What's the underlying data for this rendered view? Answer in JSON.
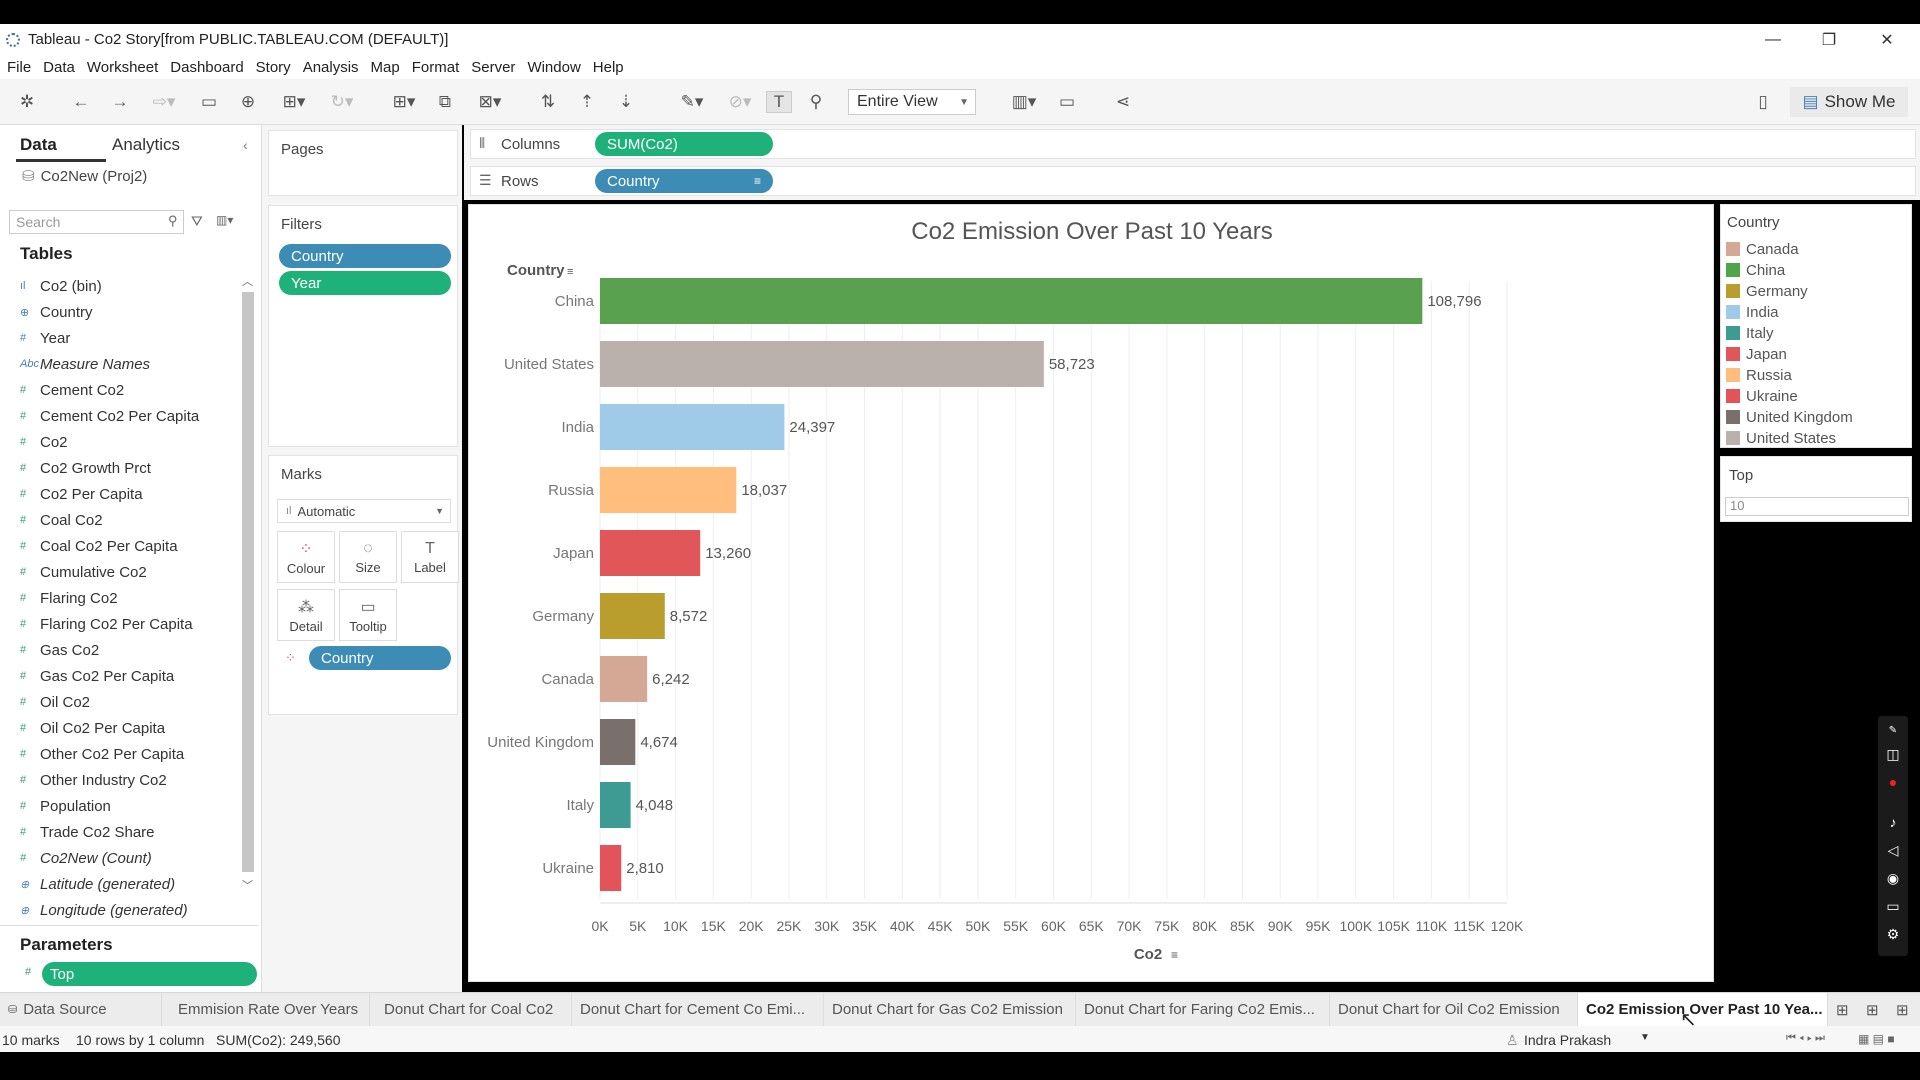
{
  "window": {
    "title": "Tableau - Co2 Story[from PUBLIC.TABLEAU.COM (DEFAULT)]"
  },
  "menu": [
    "File",
    "Data",
    "Worksheet",
    "Dashboard",
    "Story",
    "Analysis",
    "Map",
    "Format",
    "Server",
    "Window",
    "Help"
  ],
  "toolbar": {
    "fit": "Entire View",
    "show_me": "Show Me"
  },
  "left_panel": {
    "tab_data": "Data",
    "tab_analytics": "Analytics",
    "datasource": "Co2New (Proj2)",
    "search_placeholder": "Search",
    "tables_title": "Tables",
    "fields": [
      {
        "name": "Co2 (bin)",
        "type": "bin"
      },
      {
        "name": "Country",
        "type": "geo"
      },
      {
        "name": "Year",
        "type": "dim"
      },
      {
        "name": "Measure Names",
        "type": "abc",
        "italic": true
      },
      {
        "name": "Cement Co2",
        "type": "measure"
      },
      {
        "name": "Cement Co2 Per Capita",
        "type": "measure"
      },
      {
        "name": "Co2",
        "type": "measure"
      },
      {
        "name": "Co2 Growth Prct",
        "type": "measure"
      },
      {
        "name": "Co2 Per Capita",
        "type": "measure"
      },
      {
        "name": "Coal Co2",
        "type": "measure"
      },
      {
        "name": "Coal Co2 Per Capita",
        "type": "measure"
      },
      {
        "name": "Cumulative Co2",
        "type": "measure"
      },
      {
        "name": "Flaring Co2",
        "type": "measure"
      },
      {
        "name": "Flaring Co2 Per Capita",
        "type": "measure"
      },
      {
        "name": "Gas Co2",
        "type": "measure"
      },
      {
        "name": "Gas Co2 Per Capita",
        "type": "measure"
      },
      {
        "name": "Oil Co2",
        "type": "measure"
      },
      {
        "name": "Oil Co2 Per Capita",
        "type": "measure"
      },
      {
        "name": "Other Co2 Per Capita",
        "type": "measure"
      },
      {
        "name": "Other Industry Co2",
        "type": "measure"
      },
      {
        "name": "Population",
        "type": "measure"
      },
      {
        "name": "Trade Co2 Share",
        "type": "measure"
      },
      {
        "name": "Co2New (Count)",
        "type": "measure",
        "italic": true
      },
      {
        "name": "Latitude (generated)",
        "type": "geo",
        "italic": true
      },
      {
        "name": "Longitude (generated)",
        "type": "geo",
        "italic": true
      }
    ],
    "parameters_title": "Parameters",
    "parameter": "Top"
  },
  "cards": {
    "pages": "Pages",
    "filters": "Filters",
    "filter_pills": [
      "Country",
      "Year"
    ],
    "marks": "Marks",
    "mark_type": "Automatic",
    "mark_buttons": [
      "Colour",
      "Size",
      "Label",
      "Detail",
      "Tooltip"
    ],
    "mark_pill": "Country"
  },
  "shelves": {
    "columns_label": "Columns",
    "columns_pill": "SUM(Co2)",
    "rows_label": "Rows",
    "rows_pill": "Country"
  },
  "legend": {
    "title": "Country",
    "items": [
      {
        "name": "Canada",
        "color": "#d4a894"
      },
      {
        "name": "China",
        "color": "#4ea54a"
      },
      {
        "name": "Germany",
        "color": "#b99d2d"
      },
      {
        "name": "India",
        "color": "#a0cbe8"
      },
      {
        "name": "Italy",
        "color": "#3d9b93"
      },
      {
        "name": "Japan",
        "color": "#e15759"
      },
      {
        "name": "Russia",
        "color": "#ffbe7d"
      },
      {
        "name": "Ukraine",
        "color": "#e3535a"
      },
      {
        "name": "United Kingdom",
        "color": "#79706e"
      },
      {
        "name": "United States",
        "color": "#bab0ac"
      }
    ]
  },
  "top_param": {
    "title": "Top",
    "value": "10"
  },
  "chart_data": {
    "type": "bar",
    "title": "Co2 Emission Over Past 10 Years",
    "row_header": "Country",
    "xlabel": "Co2",
    "categories": [
      "China",
      "United States",
      "India",
      "Russia",
      "Japan",
      "Germany",
      "Canada",
      "United Kingdom",
      "Italy",
      "Ukraine"
    ],
    "values": [
      108796,
      58723,
      24397,
      18037,
      13260,
      8572,
      6242,
      4674,
      4048,
      2810
    ],
    "value_labels": [
      "108,796",
      "58,723",
      "24,397",
      "18,037",
      "13,260",
      "8,572",
      "6,242",
      "4,674",
      "4,048",
      "2,810"
    ],
    "colors": [
      "#59a14f",
      "#bab0ac",
      "#a0cbe8",
      "#ffbe7d",
      "#e15759",
      "#b99d2d",
      "#d4a894",
      "#79706e",
      "#3d9b93",
      "#e3535a"
    ],
    "xlim": [
      0,
      120000
    ],
    "xticks": [
      "0K",
      "5K",
      "10K",
      "15K",
      "20K",
      "25K",
      "30K",
      "35K",
      "40K",
      "45K",
      "50K",
      "55K",
      "60K",
      "65K",
      "70K",
      "75K",
      "80K",
      "85K",
      "90K",
      "95K",
      "100K",
      "105K",
      "110K",
      "115K",
      "120K"
    ],
    "grid": true
  },
  "sheet_tabs": [
    "Data Source",
    "Emmision Rate Over Years",
    "Donut Chart for Coal Co2",
    "Donut Chart for Cement Co Emi...",
    "Donut Chart for Gas Co2 Emission",
    "Donut Chart for Faring Co2 Emis...",
    "Donut Chart for Oil Co2 Emission",
    "Co2 Emission Over Past 10 Yea..."
  ],
  "status": {
    "marks": "10 marks",
    "dims": "10 rows by 1 column",
    "sum": "SUM(Co2): 249,560",
    "user": "Indra Prakash"
  }
}
